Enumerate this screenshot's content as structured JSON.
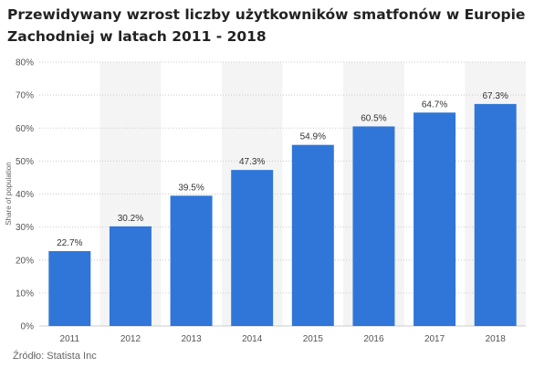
{
  "chart_data": {
    "type": "bar",
    "title": "Przewidywany wzrost liczby użytkowników smatfonów w Europie Zachodniej w latach 2011 - 2018",
    "ylabel": "Share of population",
    "xlabel": "",
    "categories": [
      "2011",
      "2012",
      "2013",
      "2014",
      "2015",
      "2016",
      "2017",
      "2018"
    ],
    "values": [
      22.7,
      30.2,
      39.5,
      47.3,
      54.9,
      60.5,
      64.7,
      67.3
    ],
    "value_labels": [
      "22.7%",
      "30.2%",
      "39.5%",
      "47.3%",
      "54.9%",
      "60.5%",
      "64.7%",
      "67.3%"
    ],
    "ylim": [
      0,
      80
    ],
    "yticks": [
      0,
      10,
      20,
      30,
      40,
      50,
      60,
      70,
      80
    ],
    "ytick_labels": [
      "0%",
      "10%",
      "20%",
      "30%",
      "40%",
      "50%",
      "60%",
      "70%",
      "80%"
    ],
    "grid": true,
    "alternating_bands": true,
    "colors": {
      "bar": "#2f76d8",
      "band": "#f4f4f4",
      "grid": "#cccccc"
    }
  },
  "source": "Źródło: Statista Inc"
}
